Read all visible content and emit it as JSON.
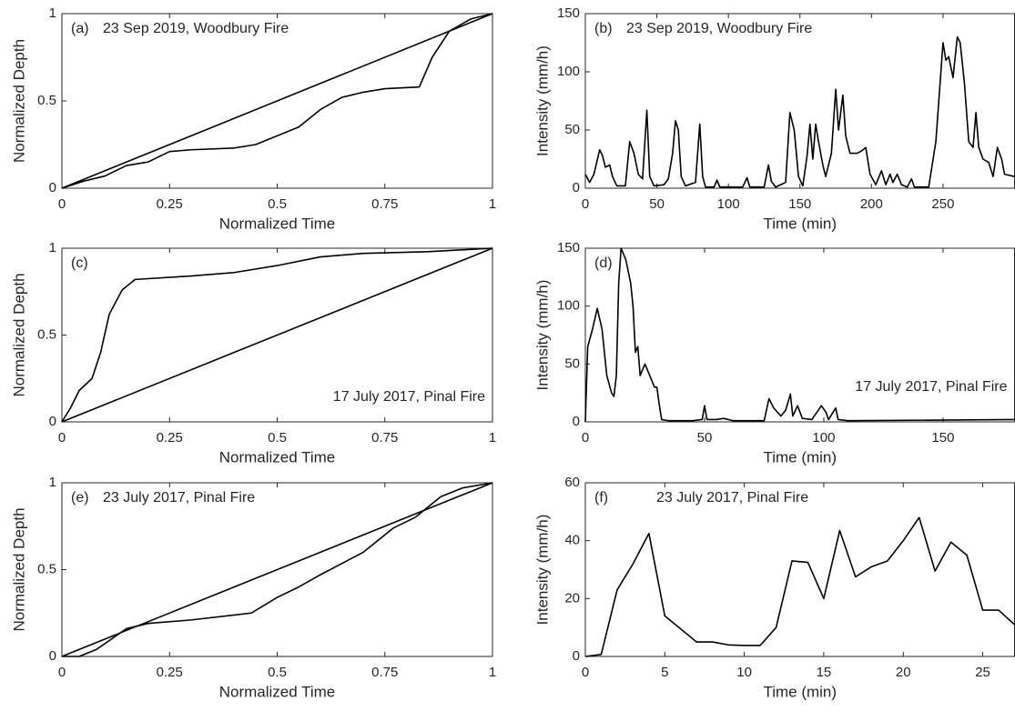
{
  "chart_data": [
    {
      "type": "line",
      "panel": "(a)",
      "annotation": "23 Sep 2019, Woodbury Fire",
      "xlabel": "Normalized Time",
      "ylabel": "Normalized Depth",
      "xlim": [
        0,
        1
      ],
      "ylim": [
        0,
        1
      ],
      "xticks": [
        0,
        0.25,
        0.5,
        0.75,
        1
      ],
      "yticks": [
        0,
        0.5,
        1
      ],
      "series": [
        {
          "color": "#000000",
          "x": [
            0,
            1
          ],
          "values": [
            0,
            1
          ]
        },
        {
          "color": "#000000",
          "x": [
            0,
            0.05,
            0.1,
            0.15,
            0.2,
            0.25,
            0.3,
            0.4,
            0.45,
            0.5,
            0.55,
            0.6,
            0.65,
            0.7,
            0.75,
            0.83,
            0.86,
            0.9,
            0.95,
            1
          ],
          "values": [
            0,
            0.04,
            0.07,
            0.13,
            0.15,
            0.21,
            0.22,
            0.23,
            0.25,
            0.3,
            0.35,
            0.45,
            0.52,
            0.55,
            0.57,
            0.58,
            0.75,
            0.9,
            0.97,
            1
          ]
        }
      ]
    },
    {
      "type": "line",
      "panel": "(b)",
      "annotation": "23 Sep 2019, Woodbury Fire",
      "xlabel": "Time (min)",
      "ylabel": "Intensity (mm/h)",
      "xlim": [
        0,
        300
      ],
      "ylim": [
        0,
        150
      ],
      "xticks": [
        0,
        50,
        100,
        150,
        200,
        250
      ],
      "yticks": [
        0,
        50,
        100,
        150
      ],
      "series": [
        {
          "color": "#000000",
          "x": [
            0,
            3,
            6,
            10,
            12,
            14,
            17,
            19,
            22,
            28,
            31,
            34,
            37,
            40,
            43,
            45,
            48,
            55,
            58,
            61,
            63,
            65,
            67,
            70,
            77,
            80,
            82,
            84,
            90,
            92,
            94,
            110,
            113,
            115,
            125,
            128,
            130,
            133,
            140,
            143,
            146,
            149,
            152,
            155,
            157,
            159,
            161,
            163,
            166,
            168,
            172,
            175,
            177,
            180,
            182,
            185,
            190,
            193,
            196,
            199,
            203,
            207,
            210,
            213,
            215,
            218,
            221,
            225,
            228,
            230,
            240,
            245,
            250,
            252,
            254,
            257,
            260,
            262,
            265,
            268,
            271,
            273,
            275,
            278,
            282,
            285,
            288,
            291,
            293,
            300
          ],
          "values": [
            12,
            5,
            12,
            33,
            28,
            18,
            20,
            10,
            2,
            2,
            40,
            30,
            12,
            8,
            67,
            10,
            2,
            3,
            8,
            30,
            58,
            50,
            10,
            2,
            5,
            55,
            10,
            1,
            1,
            7,
            1,
            1,
            9,
            1,
            1,
            20,
            6,
            1,
            5,
            65,
            50,
            10,
            2,
            28,
            55,
            25,
            55,
            40,
            20,
            10,
            30,
            85,
            50,
            80,
            45,
            30,
            30,
            32,
            35,
            12,
            3,
            15,
            3,
            12,
            5,
            12,
            3,
            1,
            8,
            1,
            1,
            40,
            125,
            110,
            113,
            95,
            130,
            125,
            90,
            40,
            35,
            65,
            35,
            25,
            22,
            10,
            35,
            25,
            12,
            10
          ]
        }
      ]
    },
    {
      "type": "line",
      "panel": "(c)",
      "annotation": "17 July 2017, Pinal Fire",
      "xlabel": "Normalized Time",
      "ylabel": "Normalized Depth",
      "xlim": [
        0,
        1
      ],
      "ylim": [
        0,
        1
      ],
      "xticks": [
        0,
        0.25,
        0.5,
        0.75,
        1
      ],
      "yticks": [
        0,
        0.5,
        1
      ],
      "series": [
        {
          "color": "#000000",
          "x": [
            0,
            1
          ],
          "values": [
            0,
            1
          ]
        },
        {
          "color": "#000000",
          "x": [
            0,
            0.02,
            0.04,
            0.07,
            0.09,
            0.11,
            0.14,
            0.17,
            0.3,
            0.4,
            0.5,
            0.6,
            0.7,
            0.85,
            1
          ],
          "values": [
            0,
            0.08,
            0.18,
            0.25,
            0.4,
            0.62,
            0.76,
            0.82,
            0.84,
            0.86,
            0.9,
            0.95,
            0.97,
            0.98,
            1
          ]
        }
      ]
    },
    {
      "type": "line",
      "panel": "(d)",
      "annotation": "17 July 2017, Pinal Fire",
      "xlabel": "Time (min)",
      "ylabel": "Intensity (mm/h)",
      "xlim": [
        0,
        180
      ],
      "ylim": [
        0,
        150
      ],
      "xticks": [
        0,
        50,
        100,
        150
      ],
      "yticks": [
        0,
        50,
        100,
        150
      ],
      "series": [
        {
          "color": "#000000",
          "x": [
            0,
            1,
            3,
            5,
            7,
            9,
            11,
            12,
            13,
            14,
            15,
            17,
            19,
            20,
            21,
            22,
            23,
            25,
            27,
            29,
            30,
            31,
            32,
            35,
            45,
            49,
            50,
            51,
            55,
            58,
            62,
            75,
            77,
            79,
            82,
            84,
            86,
            87,
            89,
            91,
            95,
            99,
            101,
            102,
            105,
            106,
            110,
            180
          ],
          "values": [
            0,
            65,
            80,
            98,
            80,
            40,
            25,
            22,
            40,
            120,
            150,
            140,
            120,
            100,
            60,
            65,
            40,
            50,
            40,
            30,
            30,
            15,
            2,
            1,
            1,
            2,
            14,
            2,
            2,
            3,
            1,
            1,
            20,
            12,
            5,
            10,
            24,
            5,
            14,
            3,
            2,
            14,
            8,
            2,
            12,
            2,
            1,
            2
          ]
        }
      ]
    },
    {
      "type": "line",
      "panel": "(e)",
      "annotation": "23 July 2017, Pinal Fire",
      "xlabel": "Normalized Time",
      "ylabel": "Normalized Depth",
      "xlim": [
        0,
        1
      ],
      "ylim": [
        0,
        1
      ],
      "xticks": [
        0,
        0.25,
        0.5,
        0.75,
        1
      ],
      "yticks": [
        0,
        0.5,
        1
      ],
      "series": [
        {
          "color": "#000000",
          "x": [
            0,
            1
          ],
          "values": [
            0,
            1
          ]
        },
        {
          "color": "#000000",
          "x": [
            0,
            0.04,
            0.08,
            0.15,
            0.2,
            0.3,
            0.44,
            0.5,
            0.55,
            0.6,
            0.7,
            0.77,
            0.82,
            0.88,
            0.93,
            1
          ],
          "values": [
            0,
            0,
            0.04,
            0.16,
            0.19,
            0.21,
            0.25,
            0.34,
            0.4,
            0.47,
            0.6,
            0.74,
            0.8,
            0.92,
            0.97,
            1
          ]
        }
      ]
    },
    {
      "type": "line",
      "panel": "(f)",
      "annotation": "23 July 2017, Pinal Fire",
      "xlabel": "Time (min)",
      "ylabel": "Intensity (mm/h)",
      "xlim": [
        0,
        27
      ],
      "ylim": [
        0,
        60
      ],
      "xticks": [
        0,
        5,
        10,
        15,
        20,
        25
      ],
      "yticks": [
        0,
        20,
        40,
        60
      ],
      "series": [
        {
          "color": "#000000",
          "x": [
            0,
            1,
            2,
            3,
            4,
            5,
            7,
            8,
            9,
            10,
            11,
            12,
            13,
            14,
            15,
            16,
            17,
            18,
            19,
            20,
            21,
            22,
            23,
            24,
            25,
            26,
            27
          ],
          "values": [
            0,
            0.7,
            23,
            32,
            42.5,
            14,
            5,
            5,
            4,
            3.8,
            3.8,
            10,
            33,
            32.5,
            20,
            43.5,
            27.5,
            31,
            33,
            40,
            48,
            29.5,
            39.5,
            35,
            16,
            16,
            11
          ]
        }
      ]
    }
  ]
}
